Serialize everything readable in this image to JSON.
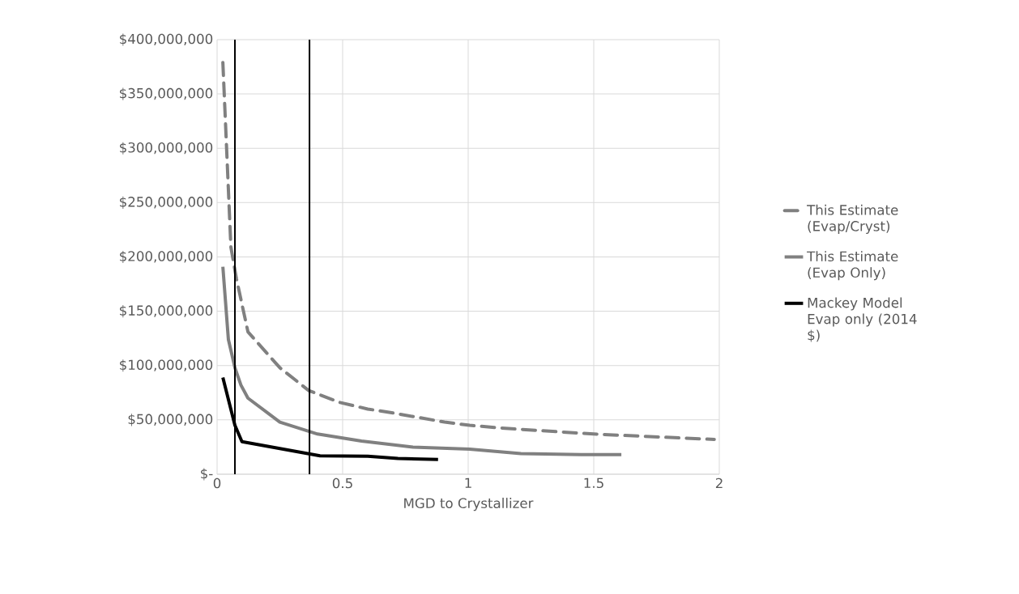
{
  "chart_data": {
    "type": "line",
    "xlabel": "MGD to Crystallizer",
    "xlim": [
      0,
      2
    ],
    "xticks": [
      0,
      0.5,
      1,
      1.5,
      2
    ],
    "ylim": [
      0,
      400000000
    ],
    "yticks": [
      {
        "value": 0,
        "label": "$-"
      },
      {
        "value": 50000000,
        "label": "$50,000,000"
      },
      {
        "value": 100000000,
        "label": "$100,000,000"
      },
      {
        "value": 150000000,
        "label": "$150,000,000"
      },
      {
        "value": 200000000,
        "label": "$200,000,000"
      },
      {
        "value": 250000000,
        "label": "$250,000,000"
      },
      {
        "value": 300000000,
        "label": "$300,000,000"
      },
      {
        "value": 350000000,
        "label": "$350,000,000"
      },
      {
        "value": 400000000,
        "label": "$400,000,000"
      }
    ],
    "grid": true,
    "legend": "right",
    "marker": "none",
    "series": [
      {
        "name": "This Estimate (Evap/Cryst)",
        "color": "#808080",
        "line_style": "dashed",
        "x": [
          0.023,
          0.055,
          0.077,
          0.123,
          0.25,
          0.365,
          0.49,
          0.6,
          0.71,
          0.906,
          1.006,
          1.16,
          1.5,
          1.98
        ],
        "values": [
          379000000,
          209000000,
          180000000,
          131000000,
          98000000,
          77000000,
          66000000,
          60000000,
          56000000,
          48000000,
          45000000,
          42000000,
          37000000,
          32000000
        ]
      },
      {
        "name": "This Estimate (Evap Only)",
        "color": "#808080",
        "line_style": "solid",
        "x": [
          0.023,
          0.045,
          0.071,
          0.095,
          0.123,
          0.25,
          0.4,
          0.575,
          0.78,
          1.006,
          1.21,
          1.45,
          1.61
        ],
        "values": [
          191000000,
          124000000,
          98000000,
          82000000,
          70000000,
          48000000,
          37000000,
          30500000,
          25000000,
          23000000,
          19000000,
          18000000,
          18000000
        ]
      },
      {
        "name": "Mackey Model Evap only (2014 $)",
        "color": "#000000",
        "line_style": "solid",
        "x": [
          0.023,
          0.071,
          0.099,
          0.41,
          0.6,
          0.72,
          0.88
        ],
        "values": [
          89000000,
          45000000,
          30000000,
          17000000,
          16500000,
          14500000,
          13600000
        ]
      }
    ],
    "ref_lines": [
      {
        "axis": "x",
        "value": 0.071,
        "color": "#000000"
      },
      {
        "axis": "x",
        "value": 0.368,
        "color": "#000000"
      }
    ]
  }
}
